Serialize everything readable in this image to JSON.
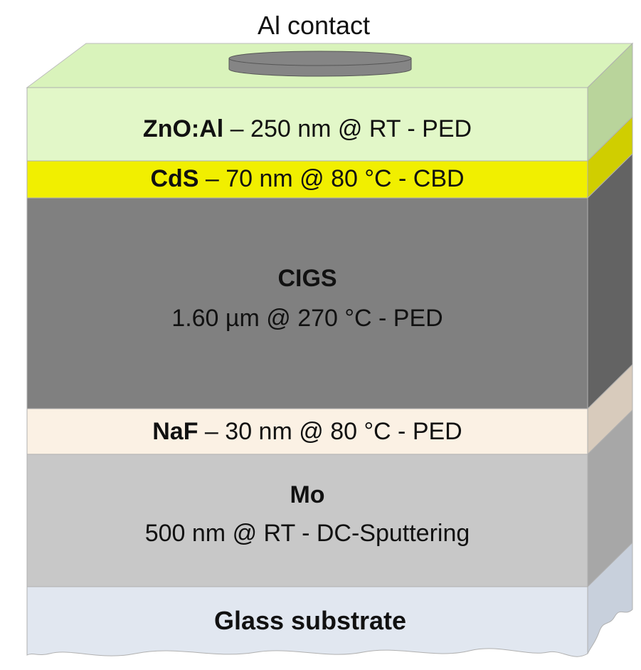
{
  "top_label": "Al contact",
  "layers": [
    {
      "id": "zno-al",
      "name": "ZnO:Al",
      "detail": " – 250 nm @ RT - PED",
      "front_color": "#e2f7c8",
      "side_color": "#b9d49b",
      "top_color": "#d9f3bb"
    },
    {
      "id": "cds",
      "name": "CdS",
      "detail": " – 70 nm @ 80 °C - CBD",
      "front_color": "#f1ef00",
      "side_color": "#d0ce00"
    },
    {
      "id": "cigs",
      "name": "CIGS",
      "detail": "1.60 µm @ 270 °C - PED",
      "front_color": "#808080",
      "side_color": "#636363"
    },
    {
      "id": "naf",
      "name": "NaF",
      "detail": " – 30 nm @ 80 °C - PED",
      "front_color": "#fbf1e4",
      "side_color": "#d8cbbc"
    },
    {
      "id": "mo",
      "name": "Mo",
      "detail": "500 nm @ RT - DC-Sputtering",
      "front_color": "#c8c8c8",
      "side_color": "#a7a7a7"
    },
    {
      "id": "glass",
      "name": "Glass substrate",
      "detail": "",
      "front_color": "#e1e7f0",
      "side_color": "#c8d0dc"
    }
  ],
  "contact_color": "#858585"
}
